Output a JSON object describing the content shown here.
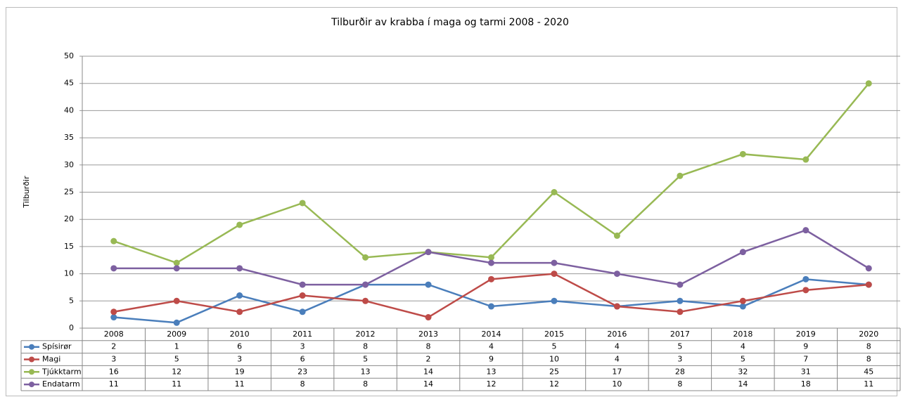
{
  "chart_data": {
    "type": "line",
    "title": "Tilburðir av krabba í maga og tarmi 2008 - 2020",
    "y_label": "Tilburðir",
    "categories": [
      "2008",
      "2009",
      "2010",
      "2011",
      "2012",
      "2013",
      "2014",
      "2015",
      "2016",
      "2017",
      "2018",
      "2019",
      "2020"
    ],
    "series": [
      {
        "name": "Spísirør",
        "color": "#4a7ebb",
        "values": [
          2,
          1,
          6,
          3,
          8,
          8,
          4,
          5,
          4,
          5,
          4,
          9,
          8
        ]
      },
      {
        "name": "Magi",
        "color": "#be4b48",
        "values": [
          3,
          5,
          3,
          6,
          5,
          2,
          9,
          10,
          4,
          3,
          5,
          7,
          8
        ]
      },
      {
        "name": "Tjúkktarm",
        "color": "#98b954",
        "values": [
          16,
          12,
          19,
          23,
          13,
          14,
          13,
          25,
          17,
          28,
          32,
          31,
          45
        ]
      },
      {
        "name": "Endatarm",
        "color": "#7d60a0",
        "values": [
          11,
          11,
          11,
          8,
          8,
          14,
          12,
          12,
          10,
          8,
          14,
          18,
          11
        ]
      }
    ],
    "ylim": [
      0,
      50
    ],
    "yticks": [
      0,
      5,
      10,
      15,
      20,
      25,
      30,
      35,
      40,
      45,
      50
    ],
    "grid": true
  }
}
